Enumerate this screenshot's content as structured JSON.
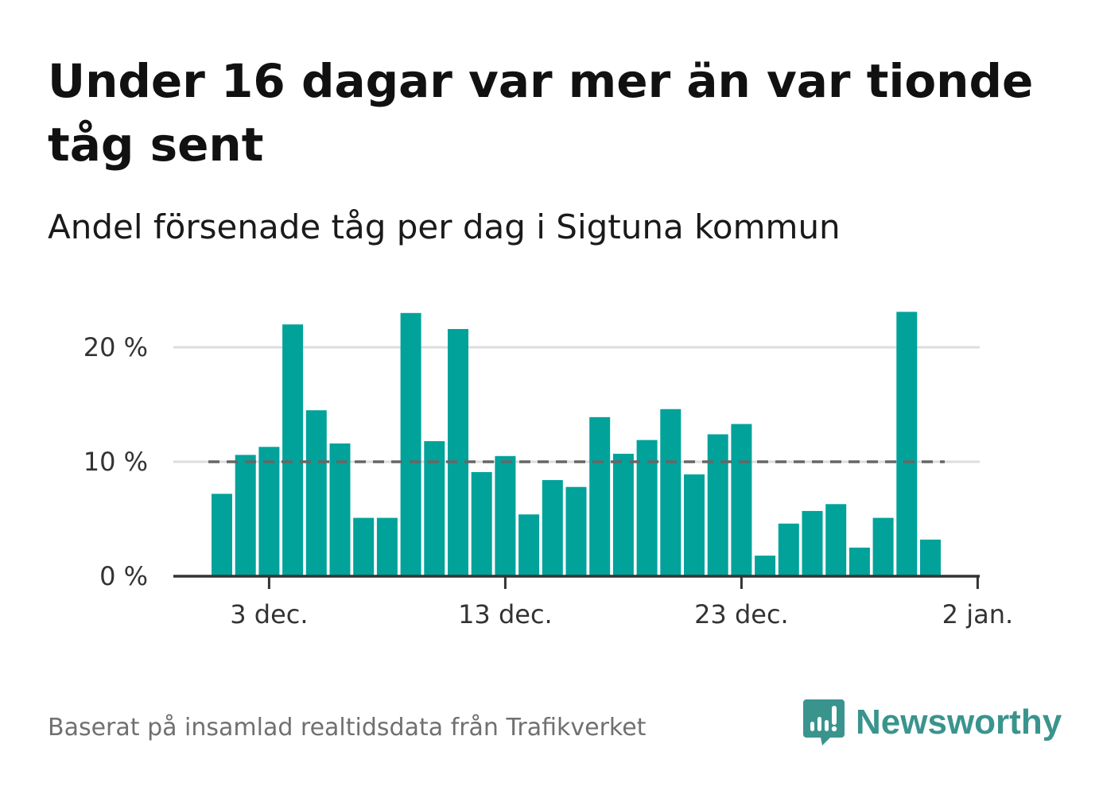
{
  "title": "Under 16 dagar var mer än var tionde tåg sent",
  "subtitle": "Andel försenade tåg per dag i Sigtuna kommun",
  "source": "Baserat på insamlad realtidsdata från Trafikverket",
  "brand": {
    "name": "Newsworthy",
    "color": "#3a948e"
  },
  "colors": {
    "bar": "#00a29a",
    "reference_line": "#666666",
    "grid": "#dddddd",
    "axis": "#333333"
  },
  "chart_data": {
    "type": "bar",
    "x": [
      "2023-12-01",
      "2023-12-02",
      "2023-12-03",
      "2023-12-04",
      "2023-12-05",
      "2023-12-06",
      "2023-12-07",
      "2023-12-08",
      "2023-12-09",
      "2023-12-10",
      "2023-12-11",
      "2023-12-12",
      "2023-12-13",
      "2023-12-14",
      "2023-12-15",
      "2023-12-16",
      "2023-12-17",
      "2023-12-18",
      "2023-12-19",
      "2023-12-20",
      "2023-12-21",
      "2023-12-22",
      "2023-12-23",
      "2023-12-24",
      "2023-12-25",
      "2023-12-26",
      "2023-12-27",
      "2023-12-28",
      "2023-12-29",
      "2023-12-30",
      "2023-12-31"
    ],
    "values": [
      7.2,
      10.6,
      11.3,
      22.0,
      14.5,
      11.6,
      5.1,
      5.1,
      23.0,
      11.8,
      21.6,
      9.1,
      10.5,
      5.4,
      8.4,
      7.8,
      13.9,
      10.7,
      11.9,
      14.6,
      8.9,
      12.4,
      13.3,
      1.8,
      4.6,
      5.7,
      6.3,
      2.5,
      5.1,
      23.1,
      3.2
    ],
    "ylim": [
      0,
      24
    ],
    "yticks": [
      0,
      10,
      20
    ],
    "ytick_labels": [
      "0 %",
      "10 %",
      "20 %"
    ],
    "xticks": [
      "2023-12-03",
      "2023-12-13",
      "2023-12-23",
      "2024-01-02"
    ],
    "xtick_labels": [
      "3 dec.",
      "13 dec.",
      "23 dec.",
      "2 jan."
    ],
    "reference_line": {
      "value": 10,
      "style": "dashed"
    },
    "grid": true,
    "legend": "none"
  }
}
